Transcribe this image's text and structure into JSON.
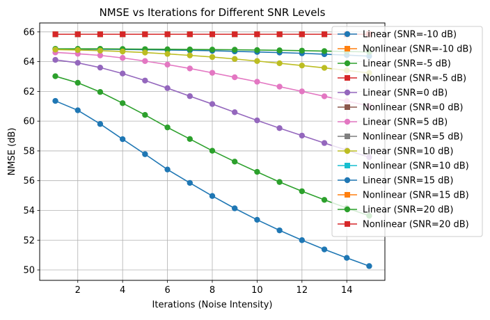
{
  "chart_data": {
    "type": "line",
    "title": "NMSE vs Iterations for Different SNR Levels",
    "xlabel": "Iterations (Noise Intensity)",
    "ylabel": "NMSE (dB)",
    "xlim": [
      0.3,
      15.7
    ],
    "ylim": [
      49.3,
      66.6
    ],
    "xticks": [
      2,
      4,
      6,
      8,
      10,
      12,
      14
    ],
    "yticks": [
      50,
      52,
      54,
      56,
      58,
      60,
      62,
      64,
      66
    ],
    "grid": true,
    "legend_position": "upper-right (overlapping plot edge)",
    "x": [
      1,
      2,
      3,
      4,
      5,
      6,
      7,
      8,
      9,
      10,
      11,
      12,
      13,
      14,
      15
    ],
    "series": [
      {
        "name": "Linear (SNR=-10 dB)",
        "marker": "circle",
        "color": "#1f77b4",
        "values": [
          64.85,
          64.84,
          64.83,
          64.82,
          64.8,
          64.78,
          64.76,
          64.73,
          64.69,
          64.65,
          64.61,
          64.56,
          64.5,
          64.44,
          64.37
        ]
      },
      {
        "name": "Nonlinear (SNR=-10 dB)",
        "marker": "square",
        "color": "#ff7f0e",
        "values": [
          65.84,
          65.84,
          65.84,
          65.84,
          65.84,
          65.84,
          65.84,
          65.84,
          65.84,
          65.84,
          65.84,
          65.84,
          65.84,
          65.84,
          65.84
        ]
      },
      {
        "name": "Linear (SNR=-5 dB)",
        "marker": "circle",
        "color": "#2ca02c",
        "values": [
          64.86,
          64.86,
          64.86,
          64.85,
          64.84,
          64.83,
          64.82,
          64.81,
          64.8,
          64.78,
          64.76,
          64.74,
          64.71,
          64.68,
          64.65
        ]
      },
      {
        "name": "Nonlinear (SNR=-5 dB)",
        "marker": "square",
        "color": "#d62728",
        "values": [
          65.84,
          65.84,
          65.84,
          65.84,
          65.84,
          65.84,
          65.84,
          65.84,
          65.84,
          65.84,
          65.84,
          65.84,
          65.84,
          65.84,
          65.84
        ]
      },
      {
        "name": "Linear (SNR=0 dB)",
        "marker": "circle",
        "color": "#9467bd",
        "values": [
          64.12,
          63.92,
          63.6,
          63.2,
          62.73,
          62.22,
          61.68,
          61.15,
          60.6,
          60.05,
          59.53,
          59.03,
          58.53,
          58.05,
          57.58
        ]
      },
      {
        "name": "Nonlinear (SNR=0 dB)",
        "marker": "square",
        "color": "#8c564b",
        "values": [
          65.84,
          65.84,
          65.84,
          65.84,
          65.84,
          65.84,
          65.84,
          65.84,
          65.84,
          65.84,
          65.84,
          65.84,
          65.84,
          65.84,
          65.84
        ]
      },
      {
        "name": "Linear (SNR=5 dB)",
        "marker": "circle",
        "color": "#e377c2",
        "values": [
          64.62,
          64.53,
          64.42,
          64.25,
          64.04,
          63.8,
          63.54,
          63.25,
          62.95,
          62.65,
          62.32,
          62.0,
          61.67,
          61.35,
          61.02
        ]
      },
      {
        "name": "Nonlinear (SNR=5 dB)",
        "marker": "square",
        "color": "#7f7f7f",
        "values": [
          65.84,
          65.84,
          65.84,
          65.84,
          65.84,
          65.84,
          65.84,
          65.84,
          65.84,
          65.84,
          65.84,
          65.84,
          65.84,
          65.84,
          65.84
        ]
      },
      {
        "name": "Linear (SNR=10 dB)",
        "marker": "circle",
        "color": "#bcbd22",
        "values": [
          64.81,
          64.78,
          64.74,
          64.68,
          64.61,
          64.52,
          64.42,
          64.31,
          64.18,
          64.04,
          63.89,
          63.74,
          63.58,
          63.41,
          63.24
        ]
      },
      {
        "name": "Nonlinear (SNR=10 dB)",
        "marker": "square",
        "color": "#17becf",
        "values": [
          65.84,
          65.84,
          65.84,
          65.84,
          65.84,
          65.84,
          65.84,
          65.84,
          65.84,
          65.84,
          65.84,
          65.84,
          65.84,
          65.84,
          65.84
        ]
      },
      {
        "name": "Linear (SNR=15 dB)",
        "marker": "circle",
        "color": "#1f77b4",
        "values": [
          61.36,
          60.73,
          59.81,
          58.79,
          57.78,
          56.75,
          55.85,
          54.97,
          54.14,
          53.37,
          52.66,
          52.0,
          51.38,
          50.81,
          50.26
        ]
      },
      {
        "name": "Nonlinear (SNR=15 dB)",
        "marker": "square",
        "color": "#ff7f0e",
        "values": [
          65.84,
          65.84,
          65.84,
          65.84,
          65.84,
          65.84,
          65.84,
          65.84,
          65.84,
          65.84,
          65.84,
          65.84,
          65.84,
          65.84,
          65.84
        ]
      },
      {
        "name": "Linear (SNR=20 dB)",
        "marker": "circle",
        "color": "#2ca02c",
        "values": [
          63.02,
          62.58,
          61.96,
          61.21,
          60.42,
          59.58,
          58.8,
          58.01,
          57.28,
          56.59,
          55.91,
          55.29,
          54.71,
          54.16,
          53.64
        ]
      },
      {
        "name": "Nonlinear (SNR=20 dB)",
        "marker": "square",
        "color": "#d62728",
        "values": [
          65.84,
          65.84,
          65.84,
          65.84,
          65.84,
          65.84,
          65.84,
          65.84,
          65.84,
          65.84,
          65.84,
          65.84,
          65.84,
          65.84,
          65.84
        ]
      }
    ]
  }
}
